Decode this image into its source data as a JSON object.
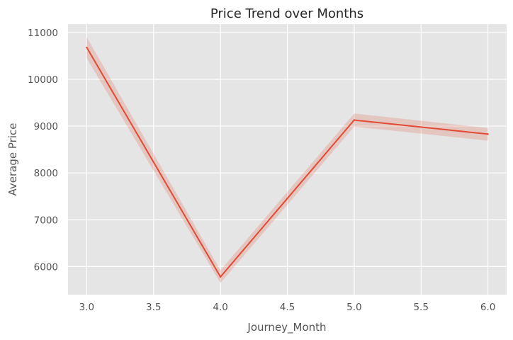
{
  "chart_data": {
    "type": "line",
    "title": "Price Trend over Months",
    "xlabel": "Journey_Month",
    "ylabel": "Average Price",
    "x": [
      3.0,
      4.0,
      5.0,
      6.0
    ],
    "xticks": [
      "3.0",
      "3.5",
      "4.0",
      "4.5",
      "5.0",
      "5.5",
      "6.0"
    ],
    "yticks": [
      "6000",
      "7000",
      "8000",
      "9000",
      "10000",
      "11000"
    ],
    "xlim": [
      2.86,
      6.14
    ],
    "ylim": [
      5400,
      11180
    ],
    "series": [
      {
        "values": [
          10680,
          5780,
          9130,
          8830
        ],
        "ci_low": [
          10450,
          5650,
          8990,
          8690
        ],
        "ci_high": [
          10900,
          5920,
          9270,
          8960
        ]
      }
    ],
    "grid": true,
    "background": "#e5e5e5",
    "line_color": "#e24a33",
    "band_color": "#e24a33"
  }
}
